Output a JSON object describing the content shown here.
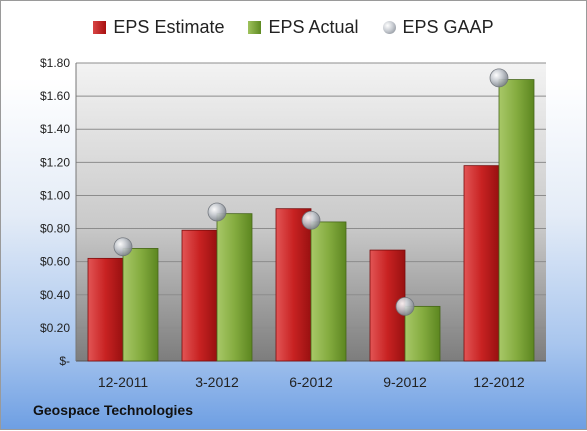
{
  "chart_data": {
    "type": "bar",
    "categories": [
      "12-2011",
      "3-2012",
      "6-2012",
      "9-2012",
      "12-2012"
    ],
    "series": [
      {
        "name": "EPS Estimate",
        "values": [
          0.62,
          0.79,
          0.92,
          0.67,
          1.18
        ],
        "color": "#c0201f"
      },
      {
        "name": "EPS Actual",
        "values": [
          0.68,
          0.89,
          0.84,
          0.33,
          1.7
        ],
        "color": "#7ea53a"
      },
      {
        "name": "EPS GAAP",
        "values": [
          0.69,
          0.9,
          0.85,
          0.33,
          1.71
        ],
        "color": "#b8bcc2",
        "marker": "circle"
      }
    ],
    "yticks": [
      "$-",
      "$0.20",
      "$0.40",
      "$0.60",
      "$0.80",
      "$1.00",
      "$1.20",
      "$1.40",
      "$1.60",
      "$1.80"
    ],
    "ylim": [
      0,
      1.8
    ],
    "grid": true,
    "legend_position": "top"
  },
  "company": "Geospace Technologies"
}
